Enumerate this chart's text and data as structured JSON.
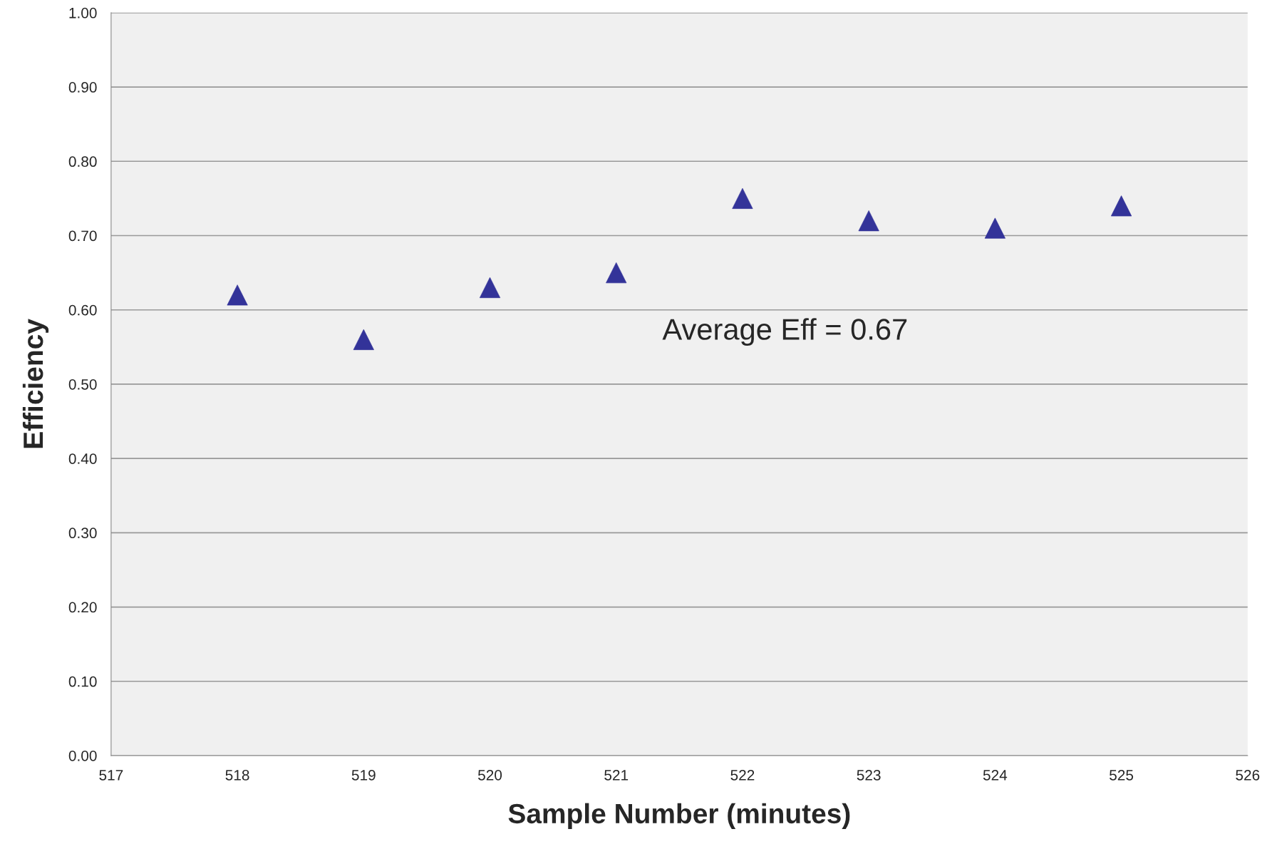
{
  "chart_data": {
    "type": "scatter",
    "xlabel": "Sample Number (minutes)",
    "ylabel": "Efficiency",
    "x": [
      518,
      519,
      520,
      521,
      522,
      523,
      524,
      525
    ],
    "series": [
      {
        "color": "#333399",
        "values": [
          0.62,
          0.56,
          0.63,
          0.65,
          0.75,
          0.72,
          0.71,
          0.74
        ]
      }
    ],
    "marker": "triangle",
    "xlim": [
      517,
      526
    ],
    "xticks": [
      517,
      518,
      519,
      520,
      521,
      522,
      523,
      524,
      525,
      526
    ],
    "ylim": [
      0,
      1
    ],
    "yticks": [
      {
        "value": 0,
        "label": "0.00"
      },
      {
        "value": 0.1,
        "label": "0.10"
      },
      {
        "value": 0.2,
        "label": "0.20"
      },
      {
        "value": 0.3,
        "label": "0.30"
      },
      {
        "value": 0.4,
        "label": "0.40"
      },
      {
        "value": 0.5,
        "label": "0.50"
      },
      {
        "value": 0.6,
        "label": "0.60"
      },
      {
        "value": 0.7,
        "label": "0.70"
      },
      {
        "value": 0.8,
        "label": "0.80"
      },
      {
        "value": 0.9,
        "label": "0.90"
      },
      {
        "value": 1,
        "label": "1.00"
      }
    ],
    "grid": "y",
    "legend": false,
    "annotations": [
      "Average Eff = 0.67"
    ]
  }
}
